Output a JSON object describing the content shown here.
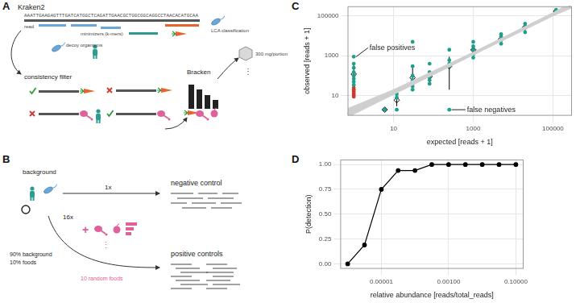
{
  "panel_labels": {
    "a": "A",
    "b": "B",
    "c": "C",
    "d": "D"
  },
  "diagram_a": {
    "title": "Kraken2",
    "sequence": "AAATTGAAGAGTTTGATCATGGCTCAGATTGAACGCTGGCGGCAGGCCTAACACATGCAA",
    "read_label": "read",
    "minimizers_label": "minimizers (k-mers)",
    "lca_label": "LCA classification",
    "decoy_label": "decoy organisms",
    "filter_label": "consistency filter",
    "bracken_label": "Bracken",
    "portion_label": "300 mg/portion",
    "more": "⋮"
  },
  "diagram_b": {
    "background_label": "background",
    "negative_multiplier": "1x",
    "negative_label": "negative control",
    "positive_multiplier": "16x",
    "plus": "+",
    "more": "⋮",
    "mix_labels": [
      "90% background",
      "10% foods"
    ],
    "foods_label": "10 random foods",
    "positive_label": "positive controls"
  },
  "chart_data": [
    {
      "type": "scatter",
      "x_label": "expected [reads + 1]",
      "y_label": "observed [reads + 1]",
      "log": true,
      "grid": true,
      "xlim": [
        0.7,
        300000
      ],
      "ylim": [
        1,
        300000
      ],
      "xticks": [
        10,
        1000,
        100000
      ],
      "yticks": [
        10,
        1000,
        100000
      ],
      "series": [
        {
          "color": "#1f9e89",
          "marker": "circle",
          "x": [
            1,
            1,
            1,
            1,
            1,
            1,
            1,
            1,
            6,
            12,
            12,
            12,
            30,
            30,
            30,
            30,
            30,
            30,
            80,
            80,
            80,
            80,
            80,
            250,
            250,
            250,
            250,
            250,
            1000,
            1000,
            1000,
            1000,
            1000,
            5000,
            5000,
            5000,
            5000,
            20000,
            20000,
            20000,
            20000,
            120000,
            120000,
            120000
          ],
          "values": [
            900,
            400,
            250,
            150,
            100,
            70,
            50,
            35,
            2,
            12,
            8,
            2,
            5000,
            300,
            100,
            60,
            30,
            20,
            400,
            150,
            90,
            60,
            40,
            2000,
            600,
            400,
            300,
            2,
            5000,
            3000,
            2000,
            1200,
            800,
            12000,
            9000,
            6000,
            4000,
            40000,
            30000,
            25000,
            15000,
            200000,
            180000,
            150000
          ]
        },
        {
          "color": "#d2372c",
          "marker": "circle",
          "x": [
            1,
            1,
            1,
            1,
            1,
            1
          ],
          "values": [
            25,
            20,
            16,
            13,
            11,
            9
          ]
        }
      ],
      "means": {
        "color": "#ffffff",
        "marker": "diamond",
        "x": [
          1,
          6,
          12,
          30,
          80,
          250,
          1000,
          5000,
          20000,
          120000
        ],
        "values": [
          120,
          2,
          6,
          80,
          90,
          300,
          2000,
          7000,
          27000,
          170000
        ],
        "error_low": [
          40,
          2,
          3,
          30,
          45,
          20,
          1000,
          4500,
          18000,
          140000
        ],
        "error_high": [
          350,
          2,
          11,
          250,
          180,
          900,
          3500,
          10000,
          36000,
          200000
        ]
      },
      "fit": {
        "color": "#000000",
        "band_color": "#cfcfcf",
        "x": [
          0.7,
          10,
          1000,
          100000,
          300000
        ],
        "values": [
          1.3,
          15,
          1300,
          120000,
          350000
        ],
        "lower": [
          0.8,
          11,
          1050,
          95000,
          240000
        ],
        "upper": [
          2.4,
          21,
          1600,
          150000,
          520000
        ]
      },
      "annotations": [
        {
          "text": "false positives",
          "x": 2.5,
          "y": 2500,
          "point_x": 1,
          "point_y": 900
        },
        {
          "text": "false negatives",
          "x": 700,
          "y": 2,
          "point_x": 250,
          "point_y": 2
        }
      ]
    },
    {
      "type": "line",
      "x_label": "relative abundance [reads/total_reads]",
      "y_label": "P(detection)",
      "log": "x",
      "grid": true,
      "color": "#000000",
      "marker": "circle",
      "x": [
        1e-06,
        3.16e-06,
        1e-05,
        3.16e-05,
        0.0001,
        0.000316,
        0.001,
        0.00316,
        0.01,
        0.0316,
        0.1
      ],
      "values": [
        0,
        0.19,
        0.75,
        0.94,
        0.94,
        1,
        1,
        1,
        1,
        1,
        1
      ],
      "xlim": [
        6e-07,
        0.17
      ],
      "ylim": [
        -0.05,
        1.05
      ],
      "xticks": [
        {
          "value": 1e-05,
          "label": "0.00001"
        },
        {
          "value": 0.001,
          "label": "0.00100"
        },
        {
          "value": 0.1,
          "label": "0.10000"
        }
      ],
      "yticks": [
        {
          "value": 0,
          "label": "0.00"
        },
        {
          "value": 0.25,
          "label": "0.25"
        },
        {
          "value": 0.5,
          "label": "0.50"
        },
        {
          "value": 0.75,
          "label": "0.75"
        },
        {
          "value": 1,
          "label": "1.00"
        }
      ]
    }
  ]
}
